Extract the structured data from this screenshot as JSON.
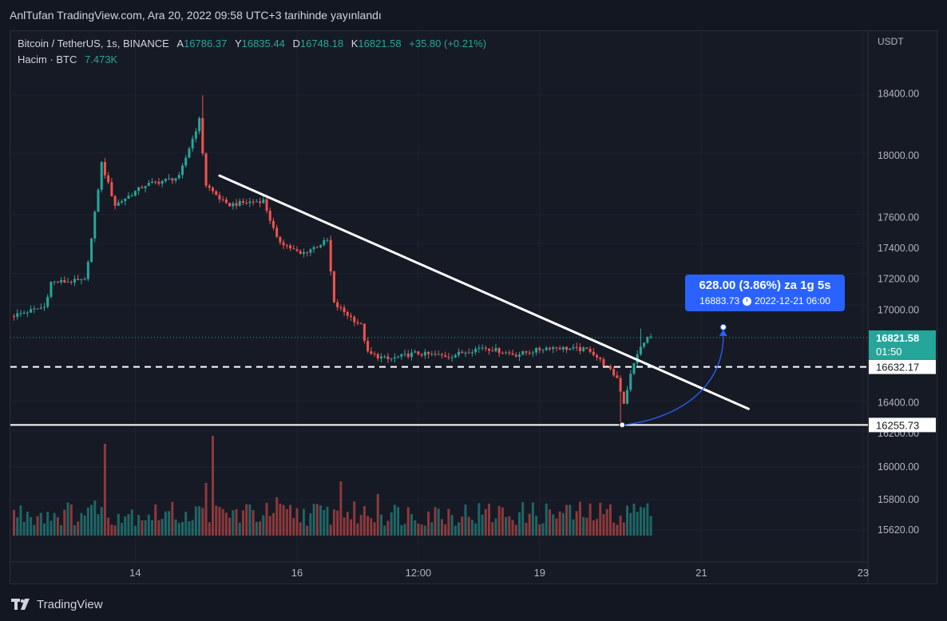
{
  "header": {
    "title": "AnlTufan TradingView.com, Ara 20, 2022 09:58 UTC+3 tarihinde yayınlandı"
  },
  "legend": {
    "symbol": "Bitcoin / TetherUS, 1s, BINANCE",
    "a_label": "A",
    "a_value": "16786.37",
    "y_label": "Y",
    "y_value": "16835.44",
    "d_label": "D",
    "d_value": "16748.18",
    "k_label": "K",
    "k_value": "16821.58",
    "change": "+35.80 (+0.21%)",
    "volume_label": "Hacim · BTC",
    "volume_value": "7.473K"
  },
  "price_axis": {
    "currency": "USDT",
    "current_price": "16821.58",
    "countdown": "01:50",
    "level_upper": "16632.17",
    "level_lower": "16255.73"
  },
  "measure_tooltip": {
    "line1": "628.00 (3.86%) za 1g 5s",
    "price": "16883.73",
    "datetime": "2022-12-21  06:00"
  },
  "footer": {
    "brand": "TradingView"
  },
  "colors": {
    "up": "#26a69a",
    "down": "#ef5350",
    "accent": "#2962ff",
    "background": "#131722"
  },
  "chart_data": {
    "type": "candlestick",
    "timeframe": "1s",
    "price_axis_ticks": [
      "18400.00",
      "18000.00",
      "17600.00",
      "17400.00",
      "17200.00",
      "17000.00",
      "16400.00",
      "16200.00"
    ],
    "volume_axis_ticks": [
      "16000.00",
      "15800.00",
      "15620.00"
    ],
    "x_ticks": [
      {
        "label": "14",
        "t": 36
      },
      {
        "label": "16",
        "t": 84
      },
      {
        "label": "12:00",
        "t": 120
      },
      {
        "label": "19",
        "t": 156
      },
      {
        "label": "21",
        "t": 204
      },
      {
        "label": "23",
        "t": 252
      }
    ],
    "anchors": [
      {
        "t": 0,
        "p": 16960
      },
      {
        "t": 10,
        "p": 17020
      },
      {
        "t": 12,
        "p": 17180
      },
      {
        "t": 22,
        "p": 17190
      },
      {
        "t": 24,
        "p": 17460
      },
      {
        "t": 27,
        "p": 17950
      },
      {
        "t": 31,
        "p": 17680
      },
      {
        "t": 40,
        "p": 17810
      },
      {
        "t": 50,
        "p": 17860
      },
      {
        "t": 53,
        "p": 18050
      },
      {
        "t": 56,
        "p": 18230
      },
      {
        "t": 58,
        "p": 17810
      },
      {
        "t": 64,
        "p": 17680
      },
      {
        "t": 75,
        "p": 17710
      },
      {
        "t": 79,
        "p": 17460
      },
      {
        "t": 86,
        "p": 17360
      },
      {
        "t": 94,
        "p": 17450
      },
      {
        "t": 96,
        "p": 17040
      },
      {
        "t": 104,
        "p": 16900
      },
      {
        "t": 106,
        "p": 16720
      },
      {
        "t": 112,
        "p": 16680
      },
      {
        "t": 120,
        "p": 16720
      },
      {
        "t": 130,
        "p": 16700
      },
      {
        "t": 140,
        "p": 16760
      },
      {
        "t": 150,
        "p": 16710
      },
      {
        "t": 160,
        "p": 16760
      },
      {
        "t": 172,
        "p": 16740
      },
      {
        "t": 176,
        "p": 16650
      },
      {
        "t": 180,
        "p": 16560
      },
      {
        "t": 182,
        "p": 16400
      },
      {
        "t": 184,
        "p": 16580
      },
      {
        "t": 186,
        "p": 16720
      },
      {
        "t": 189,
        "p": 16822
      }
    ],
    "volume": {
      "base": 24,
      "spikes": [
        {
          "t": 27,
          "v": 115
        },
        {
          "t": 59,
          "v": 125
        },
        {
          "t": 57,
          "v": 66
        },
        {
          "t": 97,
          "v": 68
        },
        {
          "t": 78,
          "v": 48
        },
        {
          "t": 108,
          "v": 52
        },
        {
          "t": 184,
          "v": 40
        },
        {
          "t": 186,
          "v": 36
        },
        {
          "t": 24,
          "v": 44
        }
      ]
    },
    "trendline": {
      "t1": 61,
      "p1": 17870,
      "t2": 218,
      "p2": 16360
    },
    "support_levels": [
      {
        "price": 16632.17,
        "style": "dashed"
      },
      {
        "price": 16255.73,
        "style": "solid"
      }
    ],
    "measure": {
      "from": {
        "t": 180.5,
        "p": 16255.73
      },
      "to": {
        "t": 210.5,
        "p": 16883.73
      }
    }
  }
}
